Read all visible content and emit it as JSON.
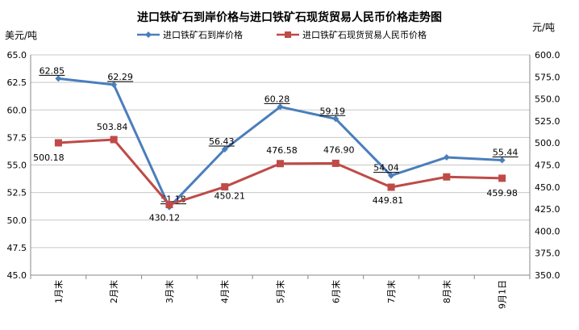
{
  "chart_data": {
    "type": "line",
    "title": "进口铁矿石到岸价格与进口铁矿石现货贸易人民币价格走势图",
    "ylabel_left": "美元/吨",
    "ylabel_right": "元/吨",
    "categories": [
      "1月末",
      "2月末",
      "3月末",
      "4月末",
      "5月末",
      "6月末",
      "7月末",
      "8月末",
      "9月1日"
    ],
    "y_left": {
      "min": 45.0,
      "max": 65.0,
      "ticks": [
        "45.0",
        "47.5",
        "50.0",
        "52.5",
        "55.0",
        "57.5",
        "60.0",
        "62.5",
        "65.0"
      ]
    },
    "y_right": {
      "min": 350.0,
      "max": 600.0,
      "ticks": [
        "350.0",
        "375.0",
        "400.0",
        "425.0",
        "450.0",
        "475.0",
        "500.0",
        "525.0",
        "550.0",
        "575.0",
        "600.0"
      ]
    },
    "grid": true,
    "legend_position": "top",
    "series": [
      {
        "name": "进口铁矿石到岸价格",
        "axis": "left",
        "color": "#4a7ebb",
        "marker": "diamond",
        "values": [
          62.85,
          62.29,
          51.18,
          56.43,
          60.28,
          59.19,
          54.04,
          55.7,
          55.44
        ],
        "labels": [
          "62.85",
          "62.29",
          "51.18",
          "56.43",
          "60.28",
          "59.19",
          "54.04",
          "",
          "55.44"
        ]
      },
      {
        "name": "进口铁矿石现货贸易人民币价格",
        "axis": "right",
        "color": "#be4b48",
        "marker": "square",
        "values": [
          500.18,
          503.84,
          430.12,
          450.21,
          476.58,
          476.9,
          449.81,
          461.5,
          459.98
        ],
        "labels": [
          "500.18",
          "503.84",
          "430.12",
          "450.21",
          "476.58",
          "476.90",
          "449.81",
          "",
          "459.98"
        ]
      }
    ]
  }
}
